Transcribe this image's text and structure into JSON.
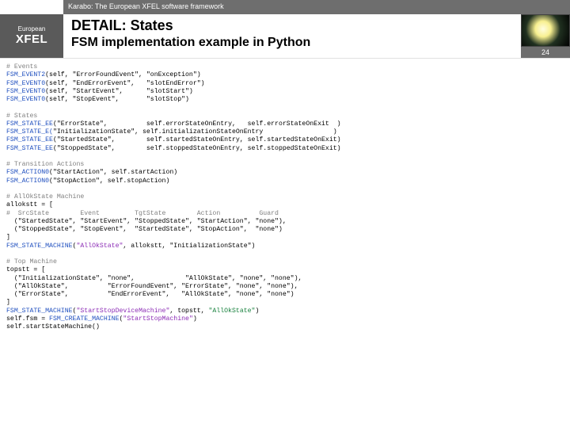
{
  "top": {
    "framework": "Karabo: The European XFEL software framework"
  },
  "logo": {
    "line1": "European",
    "line2": "XFEL"
  },
  "title": {
    "main": "DETAIL: States",
    "sub": "FSM implementation example in Python"
  },
  "slide_number": "24",
  "colors": {
    "header_bg": "#6e6e6e",
    "logo_bg": "#5a5a5a",
    "comment": "#808080",
    "fn": "#1f4fbf",
    "str": "#a08020",
    "special1": "#8b2bb5",
    "special2": "#16803c"
  },
  "code": {
    "c1": "# Events",
    "ev1_fn": "FSM_EVENT2",
    "ev1_rest": "(self, \"ErrorFoundEvent\", \"onException\")",
    "ev2_fn": "FSM_EVENT0",
    "ev2_rest": "(self, \"EndErrorEvent\",   \"slotEndError\")",
    "ev3_fn": "FSM_EVENT0",
    "ev3_rest": "(self, \"StartEvent\",      \"slotStart\")",
    "ev4_fn": "FSM_EVENT0",
    "ev4_rest": "(self, \"StopEvent\",       \"slotStop\")",
    "c2": "# States",
    "st1_fn": "FSM_STATE_EE",
    "st1_rest": "(\"ErrorState\",          self.errorStateOnEntry,   self.errorStateOnExit  )",
    "st2_fn": "FSM_STATE_E(",
    "st2_rest": "\"InitializationState\", self.initializationStateOnEntry                  )",
    "st3_fn": "FSM_STATE_EE",
    "st3_rest": "(\"StartedState\",        self.startedStateOnEntry, self.startedStateOnExit)",
    "st4_fn": "FSM_STATE_EE",
    "st4_rest": "(\"StoppedState\",        self.stoppedStateOnEntry, self.stoppedStateOnExit)",
    "c3": "# Transition Actions",
    "ta1_fn": "FSM_ACTION0",
    "ta1_rest": "(\"StartAction\", self.startAction)",
    "ta2_fn": "FSM_ACTION0",
    "ta2_rest": "(\"StopAction\", self.stopAction)",
    "c4": "# AllOkState Machine",
    "aok_decl": "allokstt = [",
    "aok_hdr": "#  SrcState        Event         TgtState        Action          Guard",
    "aok_r1": "  (\"StartedState\", \"StartEvent\", \"StoppedState\", \"StartAction\", \"none\"),",
    "aok_r2": "  (\"StoppedState\", \"StopEvent\",  \"StartedState\", \"StopAction\",  \"none\")",
    "aok_end": "]",
    "aok_mach_fn": "FSM_STATE_MACHINE",
    "aok_mach_open": "(",
    "aok_mach_sp": "\"AllOkState\"",
    "aok_mach_rest": ", allokstt, \"InitializationState\")",
    "c5": "# Top Machine",
    "top_decl": "topstt = [",
    "top_r1": "  (\"InitializationState\", \"none\",             \"AllOkState\", \"none\", \"none\"),",
    "top_r2": "  (\"AllOkState\",          \"ErrorFoundEvent\", \"ErrorState\", \"none\", \"none\"),",
    "top_r3": "  (\"ErrorState\",          \"EndErrorEvent\",   \"AllOkState\", \"none\", \"none\")",
    "top_end": "]",
    "top_mach_fn": "FSM_STATE_MACHINE",
    "top_mach_open": "(",
    "top_mach_sp1": "\"StartStopDeviceMachine\"",
    "top_mach_mid": ", topstt, ",
    "top_mach_sp2": "\"AllOkState\"",
    "top_mach_close": ")",
    "create_pre": "self.fsm = ",
    "create_fn": "FSM_CREATE_MACHINE",
    "create_open": "(",
    "create_sp": "\"StartStopMachine\"",
    "create_close": ")",
    "run": "self.startStateMachine()"
  }
}
